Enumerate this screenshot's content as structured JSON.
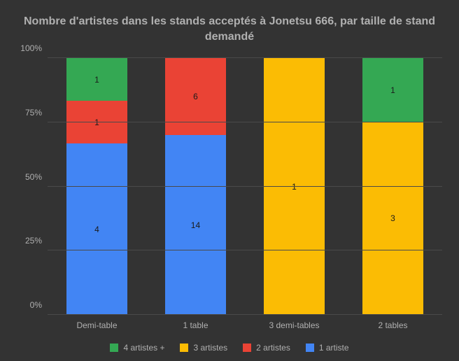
{
  "chart": {
    "type": "stacked-bar-100",
    "title": "Nombre d'artistes dans les stands acceptés à Jonetsu 666,\npar taille de stand demandé",
    "title_fontsize": 16,
    "title_color": "#b0b0b0",
    "background_color": "#333333",
    "grid_color": "#4a4a4a",
    "axis_label_color": "#b0b0b0",
    "axis_label_fontsize": 12,
    "value_label_fontsize": 12,
    "value_label_color": "#1a1a1a",
    "ylim": [
      0,
      100
    ],
    "y_ticks": [
      {
        "value": 0,
        "label": "0%"
      },
      {
        "value": 25,
        "label": "25%"
      },
      {
        "value": 50,
        "label": "50%"
      },
      {
        "value": 75,
        "label": "75%"
      },
      {
        "value": 100,
        "label": "100%"
      }
    ],
    "categories": [
      "Demi-table",
      "1 table",
      "3 demi-tables",
      "2 tables"
    ],
    "series": [
      {
        "name": "1 artiste",
        "color": "#4285f4"
      },
      {
        "name": "2 artistes",
        "color": "#ea4335"
      },
      {
        "name": "3 artistes",
        "color": "#fbbc04"
      },
      {
        "name": "4 artistes +",
        "color": "#34a853"
      }
    ],
    "legend_order": [
      "4 artistes +",
      "3 artistes",
      "2 artistes",
      "1 artiste"
    ],
    "data": [
      {
        "category": "Demi-table",
        "values": {
          "1 artiste": 4,
          "2 artistes": 1,
          "3 artistes": 0,
          "4 artistes +": 1
        }
      },
      {
        "category": "1 table",
        "values": {
          "1 artiste": 14,
          "2 artistes": 6,
          "3 artistes": 0,
          "4 artistes +": 0
        }
      },
      {
        "category": "3 demi-tables",
        "values": {
          "1 artiste": 0,
          "2 artistes": 0,
          "3 artistes": 1,
          "4 artistes +": 0
        }
      },
      {
        "category": "2 tables",
        "values": {
          "1 artiste": 0,
          "2 artistes": 0,
          "3 artistes": 3,
          "4 artistes +": 1
        }
      }
    ]
  }
}
